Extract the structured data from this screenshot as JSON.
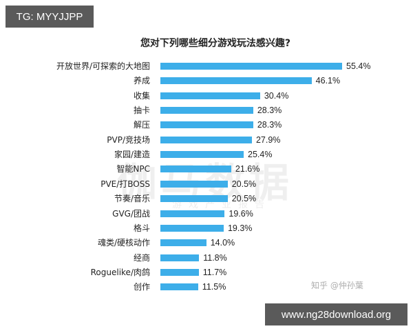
{
  "overlay": {
    "tg_badge": "TG: MYYJJPP",
    "url_badge": "www.ng28download.org",
    "credit": "知乎 @仲孙葉"
  },
  "watermark": {
    "main": "伽马数据",
    "sub": "游戏产业报告"
  },
  "chart_data": {
    "type": "bar",
    "orientation": "horizontal",
    "title": "您对下列哪些细分游戏玩法感兴趣?",
    "xlabel": "",
    "ylabel": "",
    "categories": [
      "开放世界/可探索的大地图",
      "养成",
      "收集",
      "抽卡",
      "解压",
      "PVP/竞技场",
      "家园/建造",
      "智能NPC",
      "PVE/打BOSS",
      "节奏/音乐",
      "GVG/团战",
      "格斗",
      "魂类/硬核动作",
      "经商",
      "Roguelike/肉鸽",
      "创作"
    ],
    "values": [
      55.4,
      46.1,
      30.4,
      28.3,
      28.3,
      27.9,
      25.4,
      21.6,
      20.5,
      20.5,
      19.6,
      19.3,
      14.0,
      11.8,
      11.7,
      11.5
    ],
    "value_labels": [
      "55.4%",
      "46.1%",
      "30.4%",
      "28.3%",
      "28.3%",
      "27.9%",
      "25.4%",
      "21.6%",
      "20.5%",
      "20.5%",
      "19.6%",
      "19.3%",
      "14.0%",
      "11.8%",
      "11.7%",
      "11.5%"
    ],
    "unit": "%",
    "bar_color": "#3daee9",
    "grid": false,
    "legend": null,
    "xlim": [
      0,
      60
    ]
  }
}
